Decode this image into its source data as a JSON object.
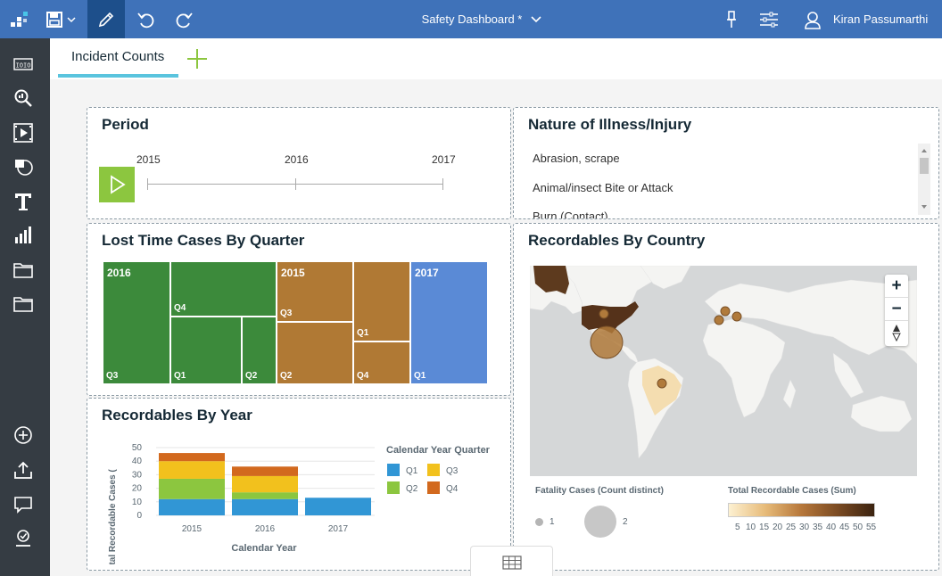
{
  "topbar": {
    "dashboard_title": "Safety Dashboard *",
    "user_name": "Kiran Passumarthi"
  },
  "tabs": [
    {
      "label": "Incident Counts"
    }
  ],
  "period": {
    "title": "Period",
    "years": [
      "2015",
      "2016",
      "2017"
    ]
  },
  "illness": {
    "title": "Nature of Illness/Injury",
    "items": [
      "Abrasion, scrape",
      "Animal/insect Bite or Attack",
      "Burn (Contact)"
    ]
  },
  "lost_time": {
    "title": "Lost Time Cases By Quarter",
    "year_labels": [
      "2016",
      "2015",
      "2017"
    ],
    "quarter_labels": [
      "Q4",
      "Q3",
      "Q1",
      "Q2",
      "Q3",
      "Q1",
      "Q2",
      "Q4",
      "Q1"
    ],
    "colors": {
      "2016": "#3c8a3b",
      "2015": "#b07934",
      "2017": "#5a8ad6"
    }
  },
  "recordables_year": {
    "title": "Recordables By Year",
    "ylabel": "Total Recordable Cases (",
    "xlabel": "Calendar Year",
    "legend_title": "Calendar Year Quarter"
  },
  "chart_data": {
    "type": "bar",
    "stacked": true,
    "categories": [
      "2015",
      "2016",
      "2017"
    ],
    "ylim": [
      0,
      50
    ],
    "yticks": [
      0,
      10,
      20,
      30,
      40,
      50
    ],
    "series": [
      {
        "name": "Q1",
        "color": "#3196d5",
        "values": [
          12,
          12,
          13
        ]
      },
      {
        "name": "Q2",
        "color": "#8cc63f",
        "values": [
          15,
          5,
          0
        ]
      },
      {
        "name": "Q3",
        "color": "#f2c11d",
        "values": [
          13,
          12,
          0
        ]
      },
      {
        "name": "Q4",
        "color": "#d2691e",
        "values": [
          6,
          7,
          0
        ]
      }
    ]
  },
  "recordables_country": {
    "title": "Recordables By Country",
    "fatality_label": "Fatality Cases (Count distinct)",
    "fatality_legend": [
      "1",
      "2"
    ],
    "total_label": "Total Recordable Cases (Sum)",
    "scale_ticks": [
      "5",
      "10",
      "15",
      "20",
      "25",
      "30",
      "35",
      "40",
      "45",
      "50",
      "55"
    ],
    "zoom_in": "+",
    "zoom_out": "−"
  },
  "icons": {
    "toolbar": [
      "grid-app-icon",
      "save-icon",
      "chevron-down-icon",
      "edit-pencil-icon",
      "undo-icon",
      "redo-icon",
      "pin-icon",
      "sliders-icon",
      "user-icon"
    ],
    "sidebar": [
      "data-sources-icon",
      "search-data-icon",
      "media-icon",
      "widgets-icon",
      "text-icon",
      "visualizations-icon",
      "folder-icon",
      "folder-icon",
      "add-icon",
      "upload-icon",
      "comment-icon",
      "user-check-icon"
    ]
  }
}
